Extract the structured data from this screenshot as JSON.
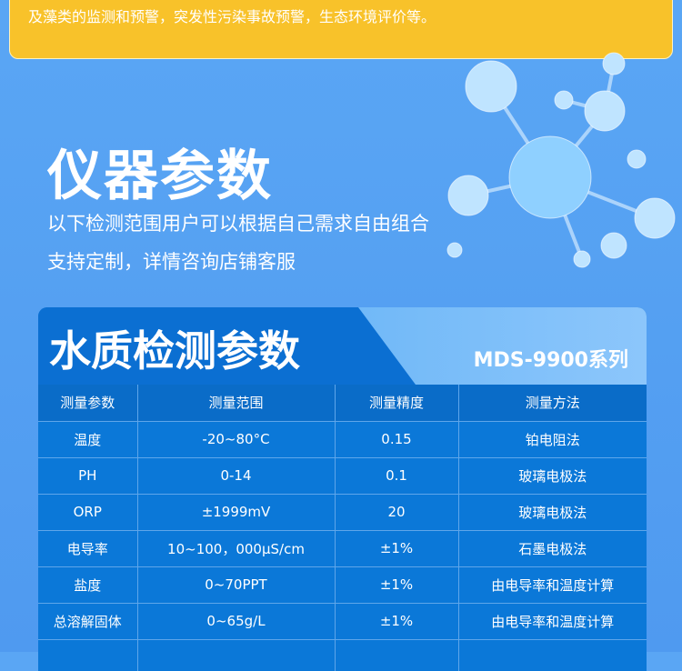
{
  "notice": {
    "text": "及藻类的监测和预警，突发性污染事故预警，生态环境评价等。"
  },
  "section": {
    "title": "仪器参数",
    "lines": [
      "以下检测范围用户可以根据自己需求自由组合",
      "支持定制，详情咨询店铺客服"
    ]
  },
  "card": {
    "title": "水质检测参数",
    "series": "MDS-9900系列",
    "headers": [
      "测量参数",
      "测量范围",
      "测量精度",
      "测量方法"
    ],
    "rows": [
      [
        "温度",
        "-20~80°C",
        "0.15",
        "铂电阻法"
      ],
      [
        "PH",
        "0-14",
        "0.1",
        "玻璃电极法"
      ],
      [
        "ORP",
        "±1999mV",
        "20",
        "玻璃电极法"
      ],
      [
        "电导率",
        "10~100，000μS/cm",
        "±1%",
        "石墨电极法"
      ],
      [
        "盐度",
        "0~70PPT",
        "±1%",
        "由电导率和温度计算"
      ],
      [
        "总溶解固体",
        "0~65g/L",
        "±1%",
        "由电导率和温度计算"
      ],
      [
        "",
        "",
        "",
        ""
      ]
    ]
  },
  "colors": {
    "background": "#4f9af0",
    "notice": "#f8c22a",
    "table": "#0b78d8"
  }
}
